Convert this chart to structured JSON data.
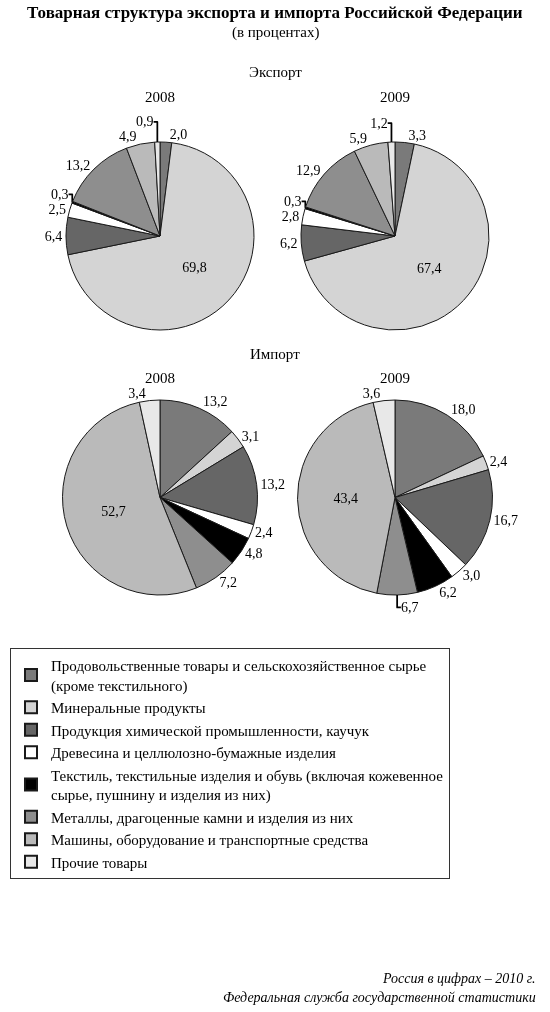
{
  "chart_data": [
    {
      "type": "pie",
      "title": "2008",
      "annotations": [
        "Товарная структура экспорта и импорта Российской Федерации",
        "(в процентах)",
        "Экспорт"
      ],
      "legend": "bottom",
      "categories": [
        "Продовольственные товары и сельскохозяйственное сырье (кроме текстильного)",
        "Минеральные продукты",
        "Продукция химической промышленности, каучук",
        "Древесина и целлюлозно-бумажные изделия",
        "Текстиль, текстильные изделия и обувь (включая кожевенное сырье, пушнину и изделия из них)",
        "Металлы, драгоценные камни и изделия из них",
        "Машины, оборудование и транспортные средства",
        "Прочие товары"
      ],
      "values": [
        2.0,
        69.8,
        6.4,
        2.5,
        0.3,
        13.2,
        4.9,
        0.9
      ],
      "value_labels": [
        "2,0",
        "69,8",
        "6,4",
        "2,5",
        "0,3",
        "13,2",
        "4,9",
        "0,9"
      ],
      "colors": [
        "#7a7a7a",
        "#d4d4d4",
        "#666666",
        "#ffffff",
        "#000000",
        "#8e8e8e",
        "#bababa",
        "#e8e8e8"
      ]
    },
    {
      "type": "pie",
      "title": "2009",
      "values": [
        3.3,
        67.4,
        6.2,
        2.8,
        0.3,
        12.9,
        5.9,
        1.2
      ],
      "value_labels": [
        "3,3",
        "67,4",
        "6,2",
        "2,8",
        "0,3",
        "12,9",
        "5,9",
        "1,2"
      ],
      "colors": [
        "#7a7a7a",
        "#d4d4d4",
        "#666666",
        "#ffffff",
        "#000000",
        "#8e8e8e",
        "#bababa",
        "#e8e8e8"
      ]
    },
    {
      "type": "pie",
      "title": "2008",
      "annotations": [
        "Импорт"
      ],
      "values": [
        13.2,
        3.1,
        13.2,
        2.4,
        4.8,
        7.2,
        52.7,
        3.4
      ],
      "value_labels": [
        "13,2",
        "3,1",
        "13,2",
        "2,4",
        "4,8",
        "7,2",
        "52,7",
        "3,4"
      ],
      "colors": [
        "#7a7a7a",
        "#d4d4d4",
        "#666666",
        "#ffffff",
        "#000000",
        "#8e8e8e",
        "#bababa",
        "#e8e8e8"
      ]
    },
    {
      "type": "pie",
      "title": "2009",
      "annotations": [
        "Россия в цифрах – 2010 г.",
        "Федеральная служба государственной статистики"
      ],
      "values": [
        18.0,
        2.4,
        16.7,
        3.0,
        6.2,
        6.7,
        43.4,
        3.6
      ],
      "value_labels": [
        "18,0",
        "2,4",
        "16,7",
        "3,0",
        "6,2",
        "6,7",
        "43,4",
        "3,6"
      ],
      "colors": [
        "#7a7a7a",
        "#d4d4d4",
        "#666666",
        "#ffffff",
        "#000000",
        "#8e8e8e",
        "#bababa",
        "#e8e8e8"
      ]
    }
  ]
}
